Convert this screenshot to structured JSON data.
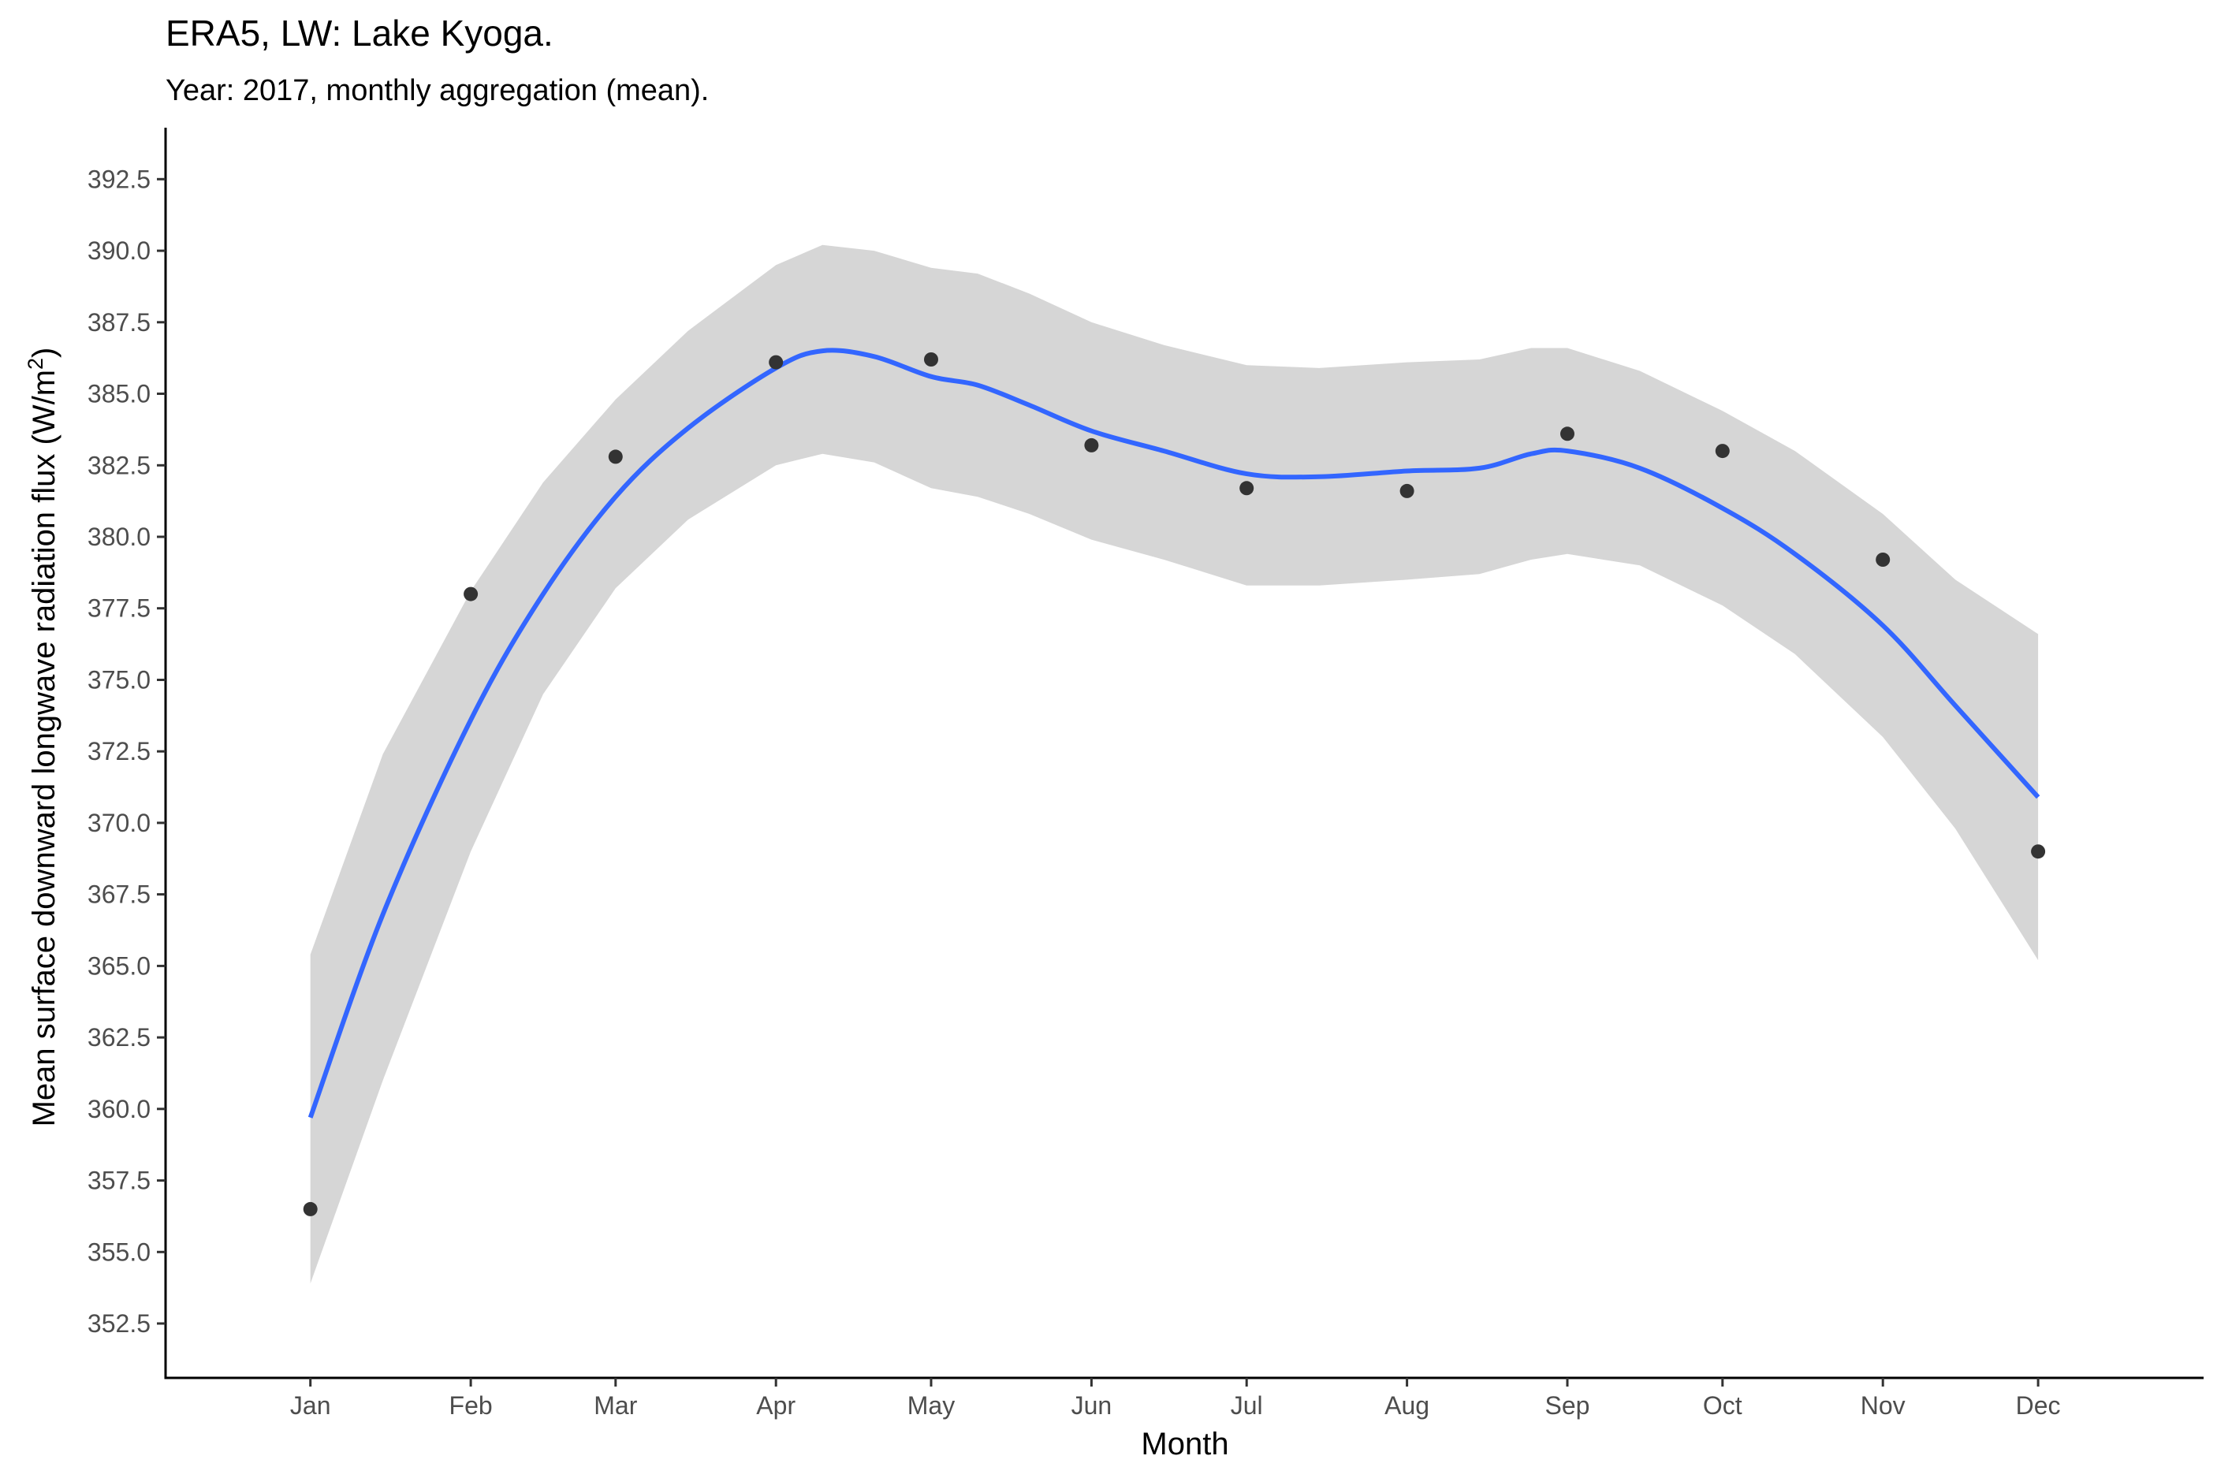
{
  "chart_data": {
    "type": "scatter",
    "title": "ERA5, LW: Lake Kyoga.",
    "subtitle": "Year: 2017, monthly aggregation (mean).",
    "xlabel": "Month",
    "ylabel_main": "Mean surface downward longwave radiation flux (W/m",
    "ylabel_sup": "2",
    "ylabel_close": ")",
    "categories": [
      "Jan",
      "Feb",
      "Mar",
      "Apr",
      "May",
      "Jun",
      "Jul",
      "Aug",
      "Sep",
      "Oct",
      "Nov",
      "Dec"
    ],
    "points": [
      {
        "x": "2017-01-01",
        "y": 356.5
      },
      {
        "x": "2017-02-01",
        "y": 378.0
      },
      {
        "x": "2017-03-01",
        "y": 382.8
      },
      {
        "x": "2017-04-01",
        "y": 386.1
      },
      {
        "x": "2017-05-01",
        "y": 386.2
      },
      {
        "x": "2017-06-01",
        "y": 383.2
      },
      {
        "x": "2017-07-01",
        "y": 381.7
      },
      {
        "x": "2017-08-01",
        "y": 381.6
      },
      {
        "x": "2017-09-01",
        "y": 383.6
      },
      {
        "x": "2017-10-01",
        "y": 383.0
      },
      {
        "x": "2017-11-01",
        "y": 379.2
      },
      {
        "x": "2017-12-01",
        "y": 369.0
      }
    ],
    "smooth": {
      "x": [
        "2017-01-01",
        "2017-01-15",
        "2017-02-01",
        "2017-02-15",
        "2017-03-01",
        "2017-03-15",
        "2017-04-01",
        "2017-04-10",
        "2017-04-20",
        "2017-05-01",
        "2017-05-10",
        "2017-05-20",
        "2017-06-01",
        "2017-06-15",
        "2017-07-01",
        "2017-07-15",
        "2017-08-01",
        "2017-08-15",
        "2017-08-25",
        "2017-09-01",
        "2017-09-15",
        "2017-10-01",
        "2017-10-15",
        "2017-11-01",
        "2017-11-15",
        "2017-12-01"
      ],
      "y": [
        359.7,
        366.8,
        373.6,
        378.0,
        381.4,
        383.8,
        385.9,
        386.5,
        386.3,
        385.6,
        385.3,
        384.6,
        383.7,
        383.0,
        382.2,
        382.1,
        382.3,
        382.4,
        382.9,
        383.0,
        382.4,
        381.0,
        379.4,
        376.9,
        374.1,
        370.9
      ],
      "lower": [
        353.9,
        361.0,
        369.0,
        374.5,
        378.2,
        380.6,
        382.5,
        382.9,
        382.6,
        381.7,
        381.4,
        380.8,
        379.9,
        379.2,
        378.3,
        378.3,
        378.5,
        378.7,
        379.2,
        379.4,
        379.0,
        377.6,
        375.9,
        373.0,
        369.8,
        365.2
      ],
      "upper": [
        365.4,
        372.4,
        378.1,
        381.9,
        384.8,
        387.2,
        389.5,
        390.2,
        390.0,
        389.4,
        389.2,
        388.5,
        387.5,
        386.7,
        386.0,
        385.9,
        386.1,
        386.2,
        386.6,
        386.6,
        385.8,
        384.4,
        383.0,
        380.8,
        378.5,
        376.6
      ]
    },
    "ylim": [
      350.6,
      394.3
    ],
    "xlim": [
      "2016-12-04",
      "2018-01-02"
    ],
    "y_ticks": [
      352.5,
      355.0,
      357.5,
      360.0,
      362.5,
      365.0,
      367.5,
      370.0,
      372.5,
      375.0,
      377.5,
      380.0,
      382.5,
      385.0,
      387.5,
      390.0,
      392.5
    ],
    "grid": false,
    "legend": "none",
    "colors": {
      "point": "#333333",
      "smooth_line": "#3366FF",
      "ribbon": "#d6d6d6",
      "axis": "#000000",
      "tick_label": "#4d4d4d"
    }
  }
}
